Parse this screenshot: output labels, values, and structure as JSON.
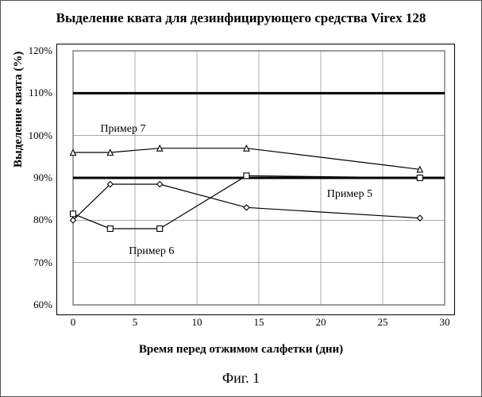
{
  "title": "Выделение квата для дезинфицирующего средства Virex 128",
  "figure_caption": "Фиг. 1",
  "xaxis": {
    "title": "Время перед отжимом салфетки (дни)",
    "min": 0,
    "max": 30,
    "tick_step": 5
  },
  "yaxis": {
    "title": "Выделение квата (%)",
    "min": 60,
    "max": 120,
    "tick_step": 10,
    "tick_suffix": "%"
  },
  "grid_color": "#777777",
  "grid_width": 0.6,
  "background_color": "#ffffff",
  "plot_border_color": "#000000",
  "title_fontsize": 17,
  "axis_title_fontsize": 15,
  "tick_fontsize": 13,
  "series_label_fontsize": 14,
  "ref_lines": [
    {
      "y": 110,
      "color": "#000000",
      "width": 3
    },
    {
      "y": 90,
      "color": "#000000",
      "width": 3
    }
  ],
  "series": [
    {
      "name": "Пример 7",
      "marker": "triangle",
      "color": "#000000",
      "line_width": 1.2,
      "marker_size": 7,
      "label_pos": {
        "x": 2.2,
        "y": 101.5
      },
      "points": [
        {
          "x": 0,
          "y": 96
        },
        {
          "x": 3,
          "y": 96
        },
        {
          "x": 7,
          "y": 97
        },
        {
          "x": 14,
          "y": 97
        },
        {
          "x": 28,
          "y": 92
        }
      ]
    },
    {
      "name": "Пример 5",
      "marker": "diamond",
      "color": "#000000",
      "line_width": 1.2,
      "marker_size": 7,
      "label_pos": {
        "x": 20.5,
        "y": 86
      },
      "points": [
        {
          "x": 0,
          "y": 80
        },
        {
          "x": 3,
          "y": 88.5
        },
        {
          "x": 7,
          "y": 88.5
        },
        {
          "x": 14,
          "y": 83
        },
        {
          "x": 28,
          "y": 80.5
        }
      ]
    },
    {
      "name": "Пример 6",
      "marker": "square",
      "color": "#000000",
      "line_width": 1.2,
      "marker_size": 7,
      "label_pos": {
        "x": 4.5,
        "y": 72.5
      },
      "points": [
        {
          "x": 0,
          "y": 81.5
        },
        {
          "x": 3,
          "y": 78
        },
        {
          "x": 7,
          "y": 78
        },
        {
          "x": 14,
          "y": 90.5
        },
        {
          "x": 28,
          "y": 90
        }
      ]
    }
  ]
}
